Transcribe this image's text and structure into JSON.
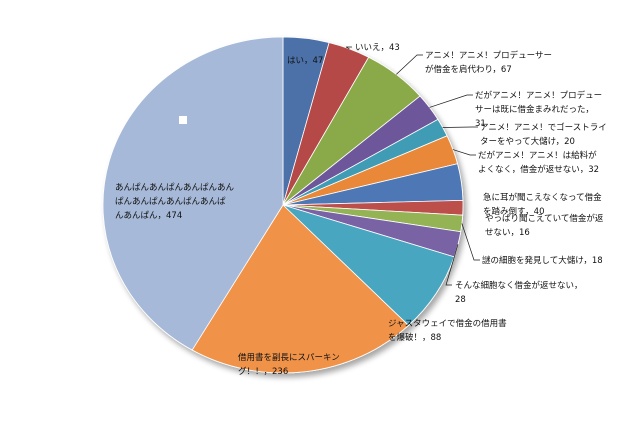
{
  "chart_data": {
    "type": "pie",
    "title": "",
    "series": [
      {
        "values": [
          47,
          43,
          67,
          31,
          20,
          32,
          40,
          16,
          18,
          28,
          88,
          236,
          474
        ],
        "categories": [
          "はい",
          "いいえ",
          "アニメ！アニメ！プロデューサーが借金を肩代わり",
          "だがアニメ！アニメ！プロデューサーは既に借金まみれだった",
          "アニメ！アニメ！でゴーストライターをやって大儲け",
          "だがアニメ！アニメ！は給料がよくなく、借金が返せない",
          "急に耳が聞こえなくなって借金を踏み倒す",
          "やっぱり聞こえていて借金が返せない",
          "謎の細胞を発見して大儲け",
          "そんな細胞なく借金が返せない",
          "ジャスタウェイで借金の借用書を爆破！",
          "借用書を副長にスパーキング！！",
          "あんぱんあんぱんあんぱんあんぱんあんぱんあんぱんあんぱんあんぱんあんぱん"
        ],
        "labels": [
          [
            "はい，47"
          ],
          [
            "いいえ，43"
          ],
          [
            "アニメ！アニメ！プロデューサー",
            "が借金を肩代わり，67"
          ],
          [
            "だがアニメ！アニメ！プロデュー",
            "サーは既に借金まみれだった，",
            "31"
          ],
          [
            "アニメ！アニメ！でゴーストライ",
            "ターをやって大儲け，20"
          ],
          [
            "だがアニメ！アニメ！は給料が",
            "よくなく，借金が返せない，32"
          ],
          [
            "急に耳が聞こえなくなって借金",
            "を踏み倒す，40"
          ],
          [
            "やっぱり聞こえていて借金が返",
            "せない，16"
          ],
          [
            "謎の細胞を発見して大儲け，18"
          ],
          [
            "そんな細胞なく借金が返せない，",
            "28"
          ],
          [
            "ジャスタウェイで借金の借用書",
            "を爆破！，88"
          ],
          [
            "借用書を副長にスパーキン",
            "グ！！，236"
          ],
          [
            "あんぱんあんぱんあんぱんあん",
            "ぱんあんぱんあんぱんあんぱ",
            "んあんぱん，474"
          ]
        ],
        "colors": [
          "#4b71a8",
          "#b54a47",
          "#8aaa48",
          "#6e569a",
          "#3f9cb4",
          "#e98838",
          "#4e78b5",
          "#bd4f4c",
          "#93b354",
          "#7a64a5",
          "#4aa6c0",
          "#f0934a",
          "#a7b9d8"
        ]
      }
    ],
    "start_angle": "12 o'clock",
    "direction": "clockwise",
    "effect": "3d-shadow",
    "legend": "none"
  }
}
